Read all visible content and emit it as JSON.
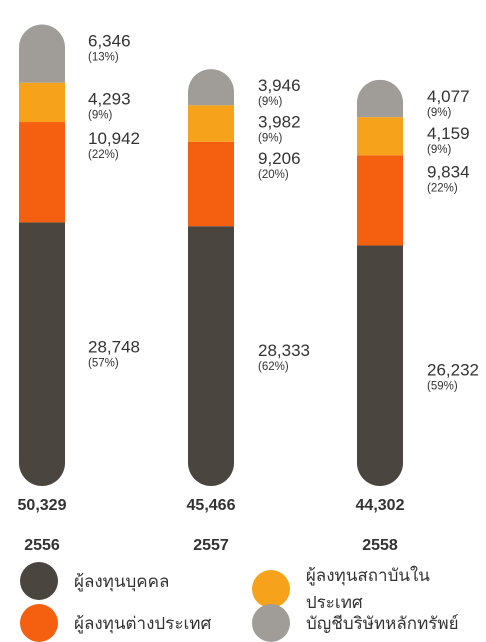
{
  "chart_data": {
    "type": "bar",
    "stacked": true,
    "categories": [
      "2556",
      "2557",
      "2558"
    ],
    "totals": [
      "50,329",
      "45,466",
      "44,302"
    ],
    "series": [
      {
        "name": "ผู้ลงทุนบุคคล",
        "color": "#4b4540",
        "values": [
          28748,
          28333,
          26232
        ],
        "value_labels": [
          "28,748",
          "28,333",
          "26,232"
        ],
        "pct_labels": [
          "(57%)",
          "(62%)",
          "(59%)"
        ]
      },
      {
        "name": "ผู้ลงทุนต่างประเทศ",
        "color": "#f4600f",
        "values": [
          10942,
          9206,
          9834
        ],
        "value_labels": [
          "10,942",
          "9,206",
          "9,834"
        ],
        "pct_labels": [
          "(22%)",
          "(20%)",
          "(22%)"
        ]
      },
      {
        "name": "ผู้ลงทุนสถาบันในประเทศ",
        "color": "#f7a21b",
        "values": [
          4293,
          3982,
          4159
        ],
        "value_labels": [
          "4,293",
          "3,982",
          "4,159"
        ],
        "pct_labels": [
          "(9%)",
          "(9%)",
          "(9%)"
        ]
      },
      {
        "name": "บัญชีบริษัทหลักทรัพย์",
        "color": "#a09d99",
        "values": [
          6346,
          3946,
          4077
        ],
        "value_labels": [
          "6,346",
          "3,946",
          "4,077"
        ],
        "pct_labels": [
          "(13%)",
          "(9%)",
          "(9%)"
        ]
      }
    ],
    "legend_order": [
      0,
      2,
      1,
      3
    ],
    "legend_position": "bottom"
  }
}
